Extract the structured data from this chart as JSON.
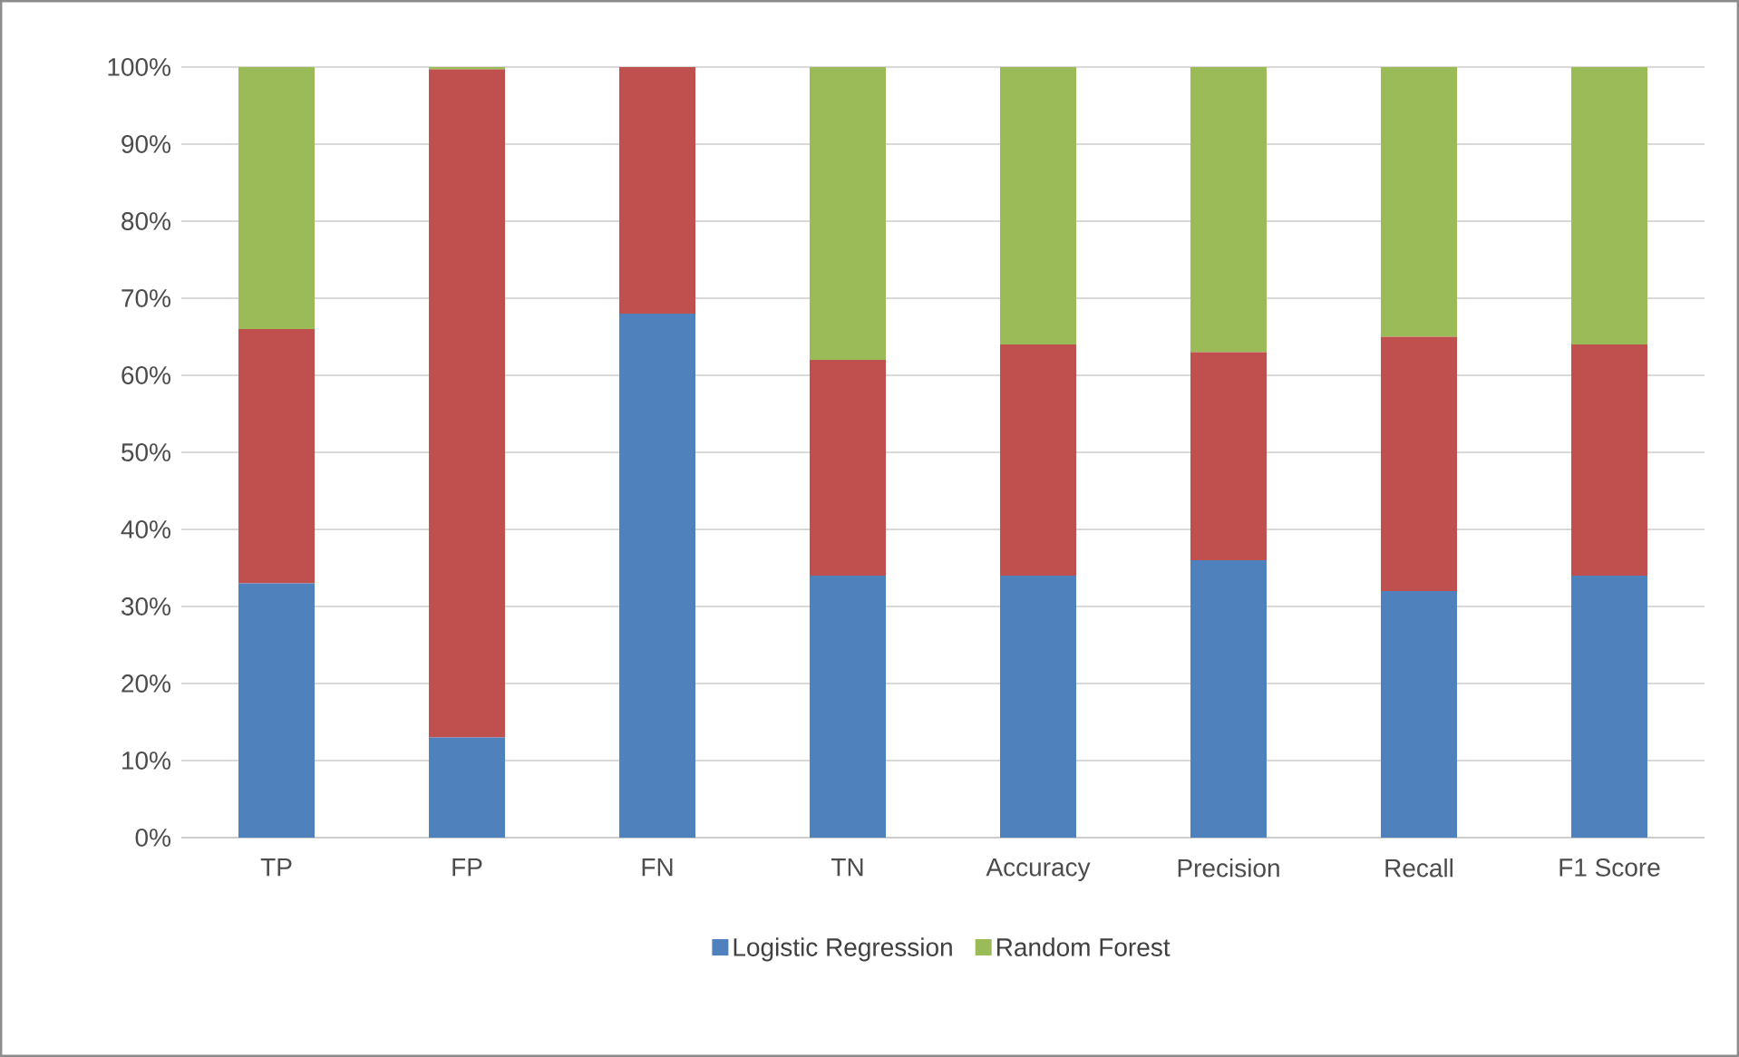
{
  "chart_data": {
    "type": "bar",
    "stacked": true,
    "categories": [
      "TP",
      "FP",
      "FN",
      "TN",
      "Accuracy",
      "Precision",
      "Recall",
      "F1 Score"
    ],
    "series": [
      {
        "name": "Logistic Regression",
        "color": "#4f81bd",
        "values": [
          33,
          13,
          68,
          34,
          34,
          36,
          32,
          34
        ]
      },
      {
        "color": "#c0504d",
        "values": [
          33,
          86.7,
          32,
          28,
          30,
          27,
          33,
          30
        ]
      },
      {
        "name": "Random Forest",
        "color": "#9bbb59",
        "values": [
          34,
          0.3,
          0,
          38,
          36,
          37,
          35,
          36
        ]
      }
    ],
    "ylim": [
      0,
      100
    ],
    "yticks": [
      {
        "value": 0,
        "label": "0%"
      },
      {
        "value": 10,
        "label": "10%"
      },
      {
        "value": 20,
        "label": "20%"
      },
      {
        "value": 30,
        "label": "30%"
      },
      {
        "value": 40,
        "label": "40%"
      },
      {
        "value": 50,
        "label": "50%"
      },
      {
        "value": 60,
        "label": "60%"
      },
      {
        "value": 70,
        "label": "70%"
      },
      {
        "value": 80,
        "label": "80%"
      },
      {
        "value": 90,
        "label": "90%"
      },
      {
        "value": 100,
        "label": "100%"
      }
    ],
    "grid": "y",
    "legend": "bottom"
  }
}
